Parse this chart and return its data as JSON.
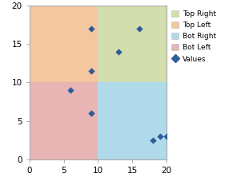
{
  "xlim": [
    0,
    20
  ],
  "ylim": [
    0,
    20
  ],
  "xticks": [
    0,
    5,
    10,
    15,
    20
  ],
  "yticks": [
    0,
    5,
    10,
    15,
    20
  ],
  "quadrant_x": 10,
  "quadrant_y": 10,
  "quadrant_colors": {
    "top_left": "#F5C7A0",
    "top_right": "#D2DEAD",
    "bot_left": "#E8B4B4",
    "bot_right": "#B0D9EA"
  },
  "scatter_x": [
    9,
    9,
    6,
    9,
    13,
    16,
    18,
    19,
    20
  ],
  "scatter_y": [
    17,
    11.5,
    9,
    6,
    14,
    17,
    2.5,
    3,
    3
  ],
  "scatter_color": "#2E5B9A",
  "legend_labels": [
    "Top Right",
    "Top Left",
    "Bot Right",
    "Bot Left",
    "Values"
  ],
  "legend_colors": [
    "#D2DEAD",
    "#F5C7A0",
    "#B0D9EA",
    "#E8B4B4",
    "#2E5B9A"
  ],
  "figsize": [
    3.06,
    2.22
  ],
  "dpi": 100,
  "tick_labelsize": 7.5,
  "spine_color": "#AAAAAA"
}
